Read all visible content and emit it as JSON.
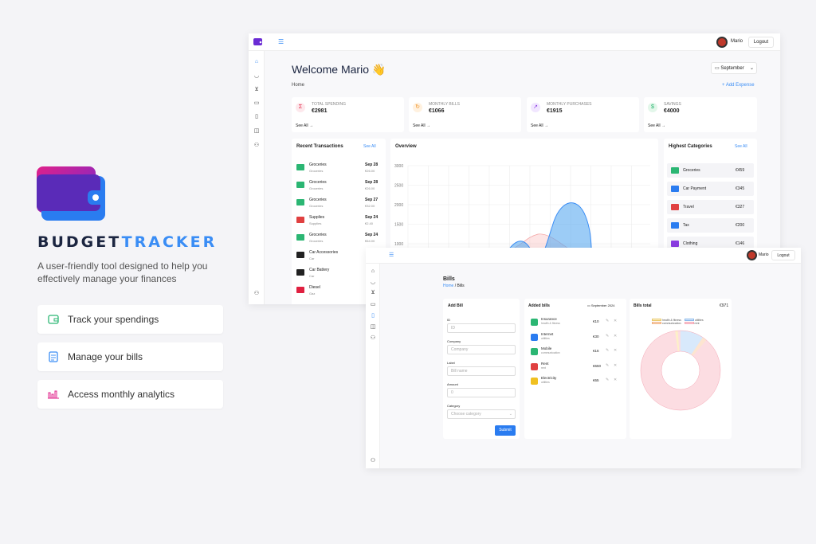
{
  "brand": {
    "part1": "BUDGET",
    "part2": "TRACKER",
    "tagline": "A user-friendly tool designed to help you effectively manage your finances"
  },
  "features": [
    {
      "label": "Track your spendings",
      "icon": "wallet-icon"
    },
    {
      "label": "Manage your bills",
      "icon": "document-icon"
    },
    {
      "label": "Access monthly analytics",
      "icon": "bar-chart-icon"
    }
  ],
  "dashboard": {
    "user": "Mario",
    "logout": "Logout",
    "welcome": "Welcome Mario 👋",
    "breadcrumb": "Home",
    "month": "September",
    "add_expense": "+ Add Expense",
    "stats": [
      {
        "label": "TOTAL SPENDING",
        "value": "€2981",
        "icon": "sigma-icon",
        "see": "See All"
      },
      {
        "label": "MONTHLY BILLS",
        "value": "€1066",
        "icon": "refresh-icon",
        "see": "See All"
      },
      {
        "label": "MONTHLY PURCHASES",
        "value": "€1915",
        "icon": "trend-icon",
        "see": "See All"
      },
      {
        "label": "SAVINGS",
        "value": "€4000",
        "icon": "cash-icon",
        "see": "See All"
      }
    ],
    "recent_title": "Recent Transactions",
    "see_all": "See All",
    "transactions": [
      {
        "name": "Groceries",
        "cat": "Groceries",
        "date": "Sep 28",
        "amount": "€26.00"
      },
      {
        "name": "Groceries",
        "cat": "Groceries",
        "date": "Sep 28",
        "amount": "€26.00"
      },
      {
        "name": "Groceries",
        "cat": "Groceries",
        "date": "Sep 27",
        "amount": "€32.00"
      },
      {
        "name": "Supplies",
        "cat": "Supplies",
        "date": "Sep 24",
        "amount": "€2.40"
      },
      {
        "name": "Groceries",
        "cat": "Groceries",
        "date": "Sep 24",
        "amount": "€64.00"
      },
      {
        "name": "Car Accessories",
        "cat": "Car",
        "date": "",
        "amount": ""
      },
      {
        "name": "Car Battery",
        "cat": "Car",
        "date": "",
        "amount": ""
      },
      {
        "name": "Diesel",
        "cat": "Gaz",
        "date": "",
        "amount": ""
      }
    ],
    "overview_title": "Overview",
    "chart_data": {
      "type": "area",
      "title": "Overview",
      "y_ticks": [
        "3000",
        "2500",
        "2000",
        "1500",
        "1000"
      ],
      "ylim": [
        1000,
        3000
      ]
    },
    "highest_title": "Highest Categories",
    "categories": [
      {
        "name": "Groceries",
        "value": "€459"
      },
      {
        "name": "Car Payment",
        "value": "€345"
      },
      {
        "name": "Travel",
        "value": "€327"
      },
      {
        "name": "Tax",
        "value": "€200"
      },
      {
        "name": "Clothing",
        "value": "€146"
      }
    ]
  },
  "bills": {
    "user": "Mario",
    "logout": "Logout",
    "title": "Bills",
    "crumb_home": "Home",
    "crumb_sep": "/",
    "crumb_current": "Bills",
    "add_title": "Add Bill",
    "form": [
      {
        "label": "ID",
        "placeholder": "ID"
      },
      {
        "label": "Company",
        "placeholder": "Company"
      },
      {
        "label": "Label",
        "placeholder": "Bill name"
      },
      {
        "label": "Amount",
        "placeholder": "0"
      },
      {
        "label": "Category",
        "placeholder": "Choose category"
      }
    ],
    "submit": "Submit",
    "added_title": "Added bills",
    "added_month": "September 2024",
    "list": [
      {
        "name": "Insurance",
        "cat": "health & fitness",
        "amount": "€10"
      },
      {
        "name": "Internet",
        "cat": "utilities",
        "amount": "€30"
      },
      {
        "name": "Mobile",
        "cat": "communication",
        "amount": "€16"
      },
      {
        "name": "Rent",
        "cat": "rent",
        "amount": "€650"
      },
      {
        "name": "Electricity",
        "cat": "utilities",
        "amount": "€65"
      }
    ],
    "total_title": "Bills total",
    "total_value": "€971",
    "legend": [
      "health & fitness",
      "utilities",
      "communication",
      "rent"
    ]
  }
}
